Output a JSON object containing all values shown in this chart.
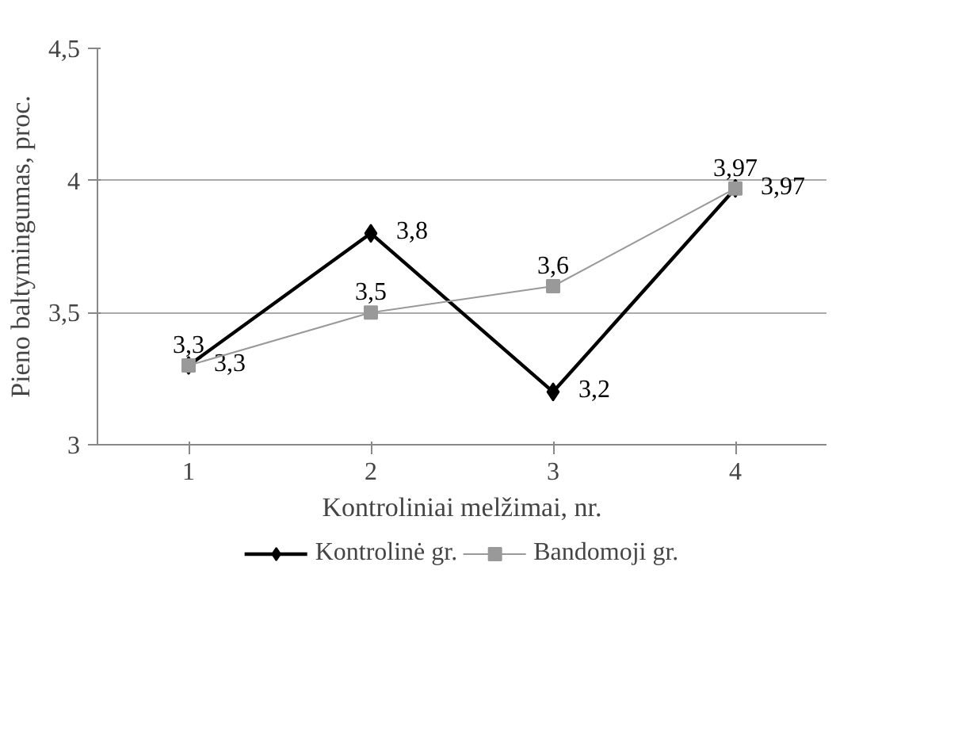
{
  "chart_data": {
    "type": "line",
    "xlabel": "Kontroliniai melžimai, nr.",
    "ylabel": "Pieno baltymingumas, proc.",
    "categories": [
      "1",
      "2",
      "3",
      "4"
    ],
    "ylim": [
      3,
      4.5
    ],
    "yticks": [
      3,
      {
        "value": 3.5,
        "label": "3,5"
      },
      4,
      {
        "value": 4.5,
        "label": "4,5"
      }
    ],
    "grid": "y",
    "legend": "bottom",
    "line_style": "solid",
    "series": [
      {
        "name": "Kontrolinė gr.",
        "color": "#000000",
        "marker": "diamond",
        "values": [
          3.3,
          3.8,
          3.2,
          3.97
        ],
        "value_labels": [
          "3,3",
          "3,8",
          "3,2",
          "3,97"
        ]
      },
      {
        "name": "Bandomoji gr.",
        "color": "#999999",
        "marker": "square",
        "values": [
          3.3,
          3.5,
          3.6,
          3.97
        ],
        "value_labels": [
          "3,3",
          "3,5",
          "3,6",
          "3,97"
        ]
      }
    ]
  }
}
